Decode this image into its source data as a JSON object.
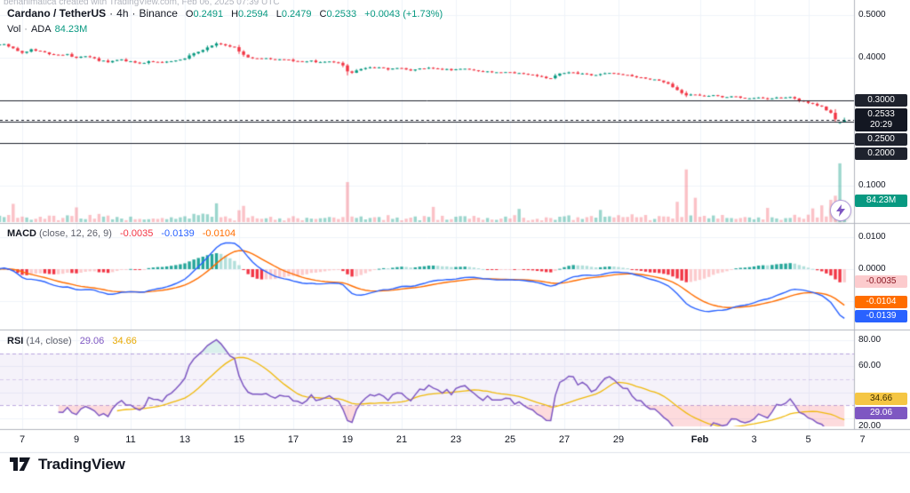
{
  "watermark": "benanimatica created with TradingView.com, Feb 06, 2025 07:39 UTC",
  "header": {
    "symbol": "Cardano / TetherUS",
    "sep": "·",
    "interval": "4h",
    "exchange": "Binance",
    "o_label": "O",
    "o": "0.2491",
    "h_label": "H",
    "h": "0.2594",
    "l_label": "L",
    "l": "0.2479",
    "c_label": "C",
    "c": "0.2533",
    "change": "+0.0043 (+1.73%)",
    "vol_label": "Vol",
    "vol_sym": "ADA",
    "vol_value": "84.23M",
    "countdown": "20:29"
  },
  "legend_macd": {
    "title": "MACD",
    "params": "(close, 12, 26, 9)",
    "hist_value": "-0.0035",
    "macd_value": "-0.0139",
    "signal_value": "-0.0104"
  },
  "legend_rsi": {
    "title": "RSI",
    "params": "(14, close)",
    "rsi_value": "29.06",
    "ma_value": "34.66"
  },
  "footer": {
    "brand": "TradingView"
  },
  "colors": {
    "up": "#089981",
    "down": "#f23645",
    "vol_up": "rgba(8,153,129,0.4)",
    "vol_down": "rgba(242,54,69,0.3)",
    "macd_line": "#2962ff",
    "signal_line": "#ff6d00",
    "hist_grow_above": "#26a69a",
    "hist_fall_above": "#b2dfdb",
    "hist_fall_below": "#f23645",
    "hist_grow_below": "#fccbcd",
    "rsi_line": "#7e57c2",
    "rsi_ma": "#f0b90b",
    "band_fill": "rgba(126,87,194,0.08)",
    "band_line": "rgba(126,87,194,0.5)",
    "mid_line": "rgba(126,87,194,0.25)",
    "oversold_fill": "rgba(242,54,69,0.18)",
    "overbought_fill": "rgba(8,153,129,0.15)",
    "grid": "#f0f3fa",
    "separator": "#b2b5be",
    "level_line": "#1e222d",
    "axis_text": "#131722"
  },
  "chart_data": {
    "type": "candlestick",
    "title": "Cardano / TetherUS · 4h · Binance",
    "ohlc_current": {
      "open": 0.2491,
      "high": 0.2594,
      "low": 0.2479,
      "close": 0.2533,
      "change": "+0.0043 (+1.73%)",
      "volume": "84.23M"
    },
    "x_axis": {
      "labels": [
        {
          "d": 1,
          "text": "7"
        },
        {
          "d": 3,
          "text": "9"
        },
        {
          "d": 5,
          "text": "11"
        },
        {
          "d": 7,
          "text": "13"
        },
        {
          "d": 9,
          "text": "15"
        },
        {
          "d": 11,
          "text": "17"
        },
        {
          "d": 13,
          "text": "19"
        },
        {
          "d": 15,
          "text": "21"
        },
        {
          "d": 17,
          "text": "23"
        },
        {
          "d": 19,
          "text": "25"
        },
        {
          "d": 21,
          "text": "27"
        },
        {
          "d": 23,
          "text": "29"
        },
        {
          "d": 26,
          "text": "Feb"
        },
        {
          "d": 28,
          "text": "3"
        },
        {
          "d": 30,
          "text": "5"
        },
        {
          "d": 32,
          "text": "7"
        }
      ]
    },
    "price_axis": {
      "plain": [
        {
          "v": 0.5,
          "text": "0.5000"
        },
        {
          "v": 0.4,
          "text": "0.4000"
        },
        {
          "v": 0.1,
          "text": "0.1000"
        }
      ],
      "levels": [
        {
          "v": 0.3,
          "text": "0.3000"
        },
        {
          "v": 0.25,
          "text": "0.2500"
        },
        {
          "v": 0.2,
          "text": "0.2000"
        }
      ],
      "current": {
        "v": 0.2533,
        "text": "0.2533",
        "countdown": "20:29"
      },
      "volume_badge": {
        "v_millions": 84.23,
        "text": "84.23M"
      }
    },
    "macd_axis": {
      "plain": [
        {
          "v": 0.01,
          "text": "0.0100"
        },
        {
          "v": 0,
          "text": "0.0000"
        }
      ],
      "badges": [
        {
          "v": -0.0035,
          "text": "-0.0035",
          "style": "hist"
        },
        {
          "v": -0.0104,
          "text": "-0.0104",
          "style": "signal"
        },
        {
          "v": -0.0139,
          "text": "-0.0139",
          "style": "macd"
        }
      ]
    },
    "rsi_axis": {
      "plain": [
        {
          "v": 80,
          "text": "80.00"
        },
        {
          "v": 60,
          "text": "60.00"
        },
        {
          "v": 20,
          "text": "20.00"
        }
      ],
      "badges": [
        {
          "v": 34.66,
          "text": "34.66",
          "style": "rsi_ma"
        },
        {
          "v": 29.06,
          "text": "29.06",
          "style": "rsi"
        }
      ],
      "band": {
        "upper": 70,
        "lower": 30,
        "middle": 50
      }
    },
    "indicators": {
      "macd": {
        "fast": 12,
        "slow": 26,
        "signal": 9
      },
      "rsi": {
        "length": 14,
        "ma_length": 14
      }
    },
    "series": {
      "candles_per_day": 6,
      "n_candles": 189,
      "seed": 42,
      "price_anchors": [
        [
          0,
          0.429
        ],
        [
          0.3,
          0.433
        ],
        [
          0.7,
          0.421
        ],
        [
          1.0,
          0.413
        ],
        [
          1.4,
          0.42
        ],
        [
          1.8,
          0.412
        ],
        [
          2.2,
          0.406
        ],
        [
          2.6,
          0.409
        ],
        [
          3.0,
          0.399
        ],
        [
          3.4,
          0.404
        ],
        [
          3.8,
          0.394
        ],
        [
          4.2,
          0.39
        ],
        [
          4.6,
          0.3955
        ],
        [
          5.0,
          0.391
        ],
        [
          5.4,
          0.3875
        ],
        [
          5.8,
          0.3915
        ],
        [
          6.2,
          0.389
        ],
        [
          6.6,
          0.3935
        ],
        [
          7.0,
          0.399
        ],
        [
          7.4,
          0.411
        ],
        [
          7.8,
          0.423
        ],
        [
          8.1,
          0.4335
        ],
        [
          8.5,
          0.4295
        ],
        [
          8.9,
          0.4225
        ],
        [
          9.2,
          0.4035
        ],
        [
          9.6,
          0.3975
        ],
        [
          10.0,
          0.3995
        ],
        [
          10.4,
          0.3945
        ],
        [
          10.8,
          0.3965
        ],
        [
          11.2,
          0.3905
        ],
        [
          11.6,
          0.3925
        ],
        [
          12.0,
          0.3885
        ],
        [
          12.4,
          0.3905
        ],
        [
          12.8,
          0.3845
        ],
        [
          13.05,
          0.3625
        ],
        [
          13.35,
          0.3695
        ],
        [
          13.7,
          0.3755
        ],
        [
          14.1,
          0.3785
        ],
        [
          14.5,
          0.3735
        ],
        [
          14.9,
          0.3755
        ],
        [
          15.3,
          0.3705
        ],
        [
          15.7,
          0.374
        ],
        [
          16.1,
          0.377
        ],
        [
          16.5,
          0.3735
        ],
        [
          16.9,
          0.3715
        ],
        [
          17.3,
          0.3745
        ],
        [
          17.7,
          0.3695
        ],
        [
          18.1,
          0.367
        ],
        [
          18.5,
          0.3645
        ],
        [
          18.9,
          0.3675
        ],
        [
          19.3,
          0.3635
        ],
        [
          19.7,
          0.3605
        ],
        [
          20.1,
          0.3565
        ],
        [
          20.45,
          0.3495
        ],
        [
          20.8,
          0.3615
        ],
        [
          21.2,
          0.3655
        ],
        [
          21.6,
          0.3625
        ],
        [
          22.0,
          0.3595
        ],
        [
          22.4,
          0.3625
        ],
        [
          22.8,
          0.3635
        ],
        [
          23.2,
          0.3605
        ],
        [
          23.6,
          0.3555
        ],
        [
          24.0,
          0.3525
        ],
        [
          24.4,
          0.3475
        ],
        [
          24.8,
          0.3395
        ],
        [
          25.1,
          0.327
        ],
        [
          25.45,
          0.3105
        ],
        [
          25.75,
          0.3155
        ],
        [
          26.1,
          0.3095
        ],
        [
          26.5,
          0.3125
        ],
        [
          26.9,
          0.3065
        ],
        [
          27.3,
          0.3095
        ],
        [
          27.7,
          0.3045
        ],
        [
          28.1,
          0.307
        ],
        [
          28.5,
          0.3035
        ],
        [
          28.9,
          0.3065
        ],
        [
          29.3,
          0.3085
        ],
        [
          29.7,
          0.2995
        ],
        [
          30.1,
          0.2925
        ],
        [
          30.5,
          0.2845
        ],
        [
          30.9,
          0.2675
        ],
        [
          31.0,
          0.2545
        ],
        [
          31.17,
          0.2491
        ],
        [
          31.33,
          0.2533
        ]
      ],
      "volume_spikes": [
        [
          0.7,
          72
        ],
        [
          3.0,
          58
        ],
        [
          8.1,
          74
        ],
        [
          9.2,
          64
        ],
        [
          13.05,
          158
        ],
        [
          16.1,
          60
        ],
        [
          19.3,
          52
        ],
        [
          22.4,
          48
        ],
        [
          25.1,
          80
        ],
        [
          25.45,
          208
        ],
        [
          25.75,
          96
        ],
        [
          28.5,
          56
        ],
        [
          30.1,
          54
        ],
        [
          30.5,
          66
        ],
        [
          30.9,
          88
        ],
        [
          31.0,
          104
        ],
        [
          31.17,
          232
        ],
        [
          31.33,
          84.23
        ]
      ],
      "last_candles": [
        {
          "i": 187,
          "o": 0.247,
          "h": 0.2502,
          "l": 0.2448,
          "c": 0.2491,
          "v": 232
        },
        {
          "i": 188,
          "o": 0.2491,
          "h": 0.2594,
          "l": 0.2479,
          "c": 0.2533,
          "v": 84.23
        }
      ]
    }
  }
}
